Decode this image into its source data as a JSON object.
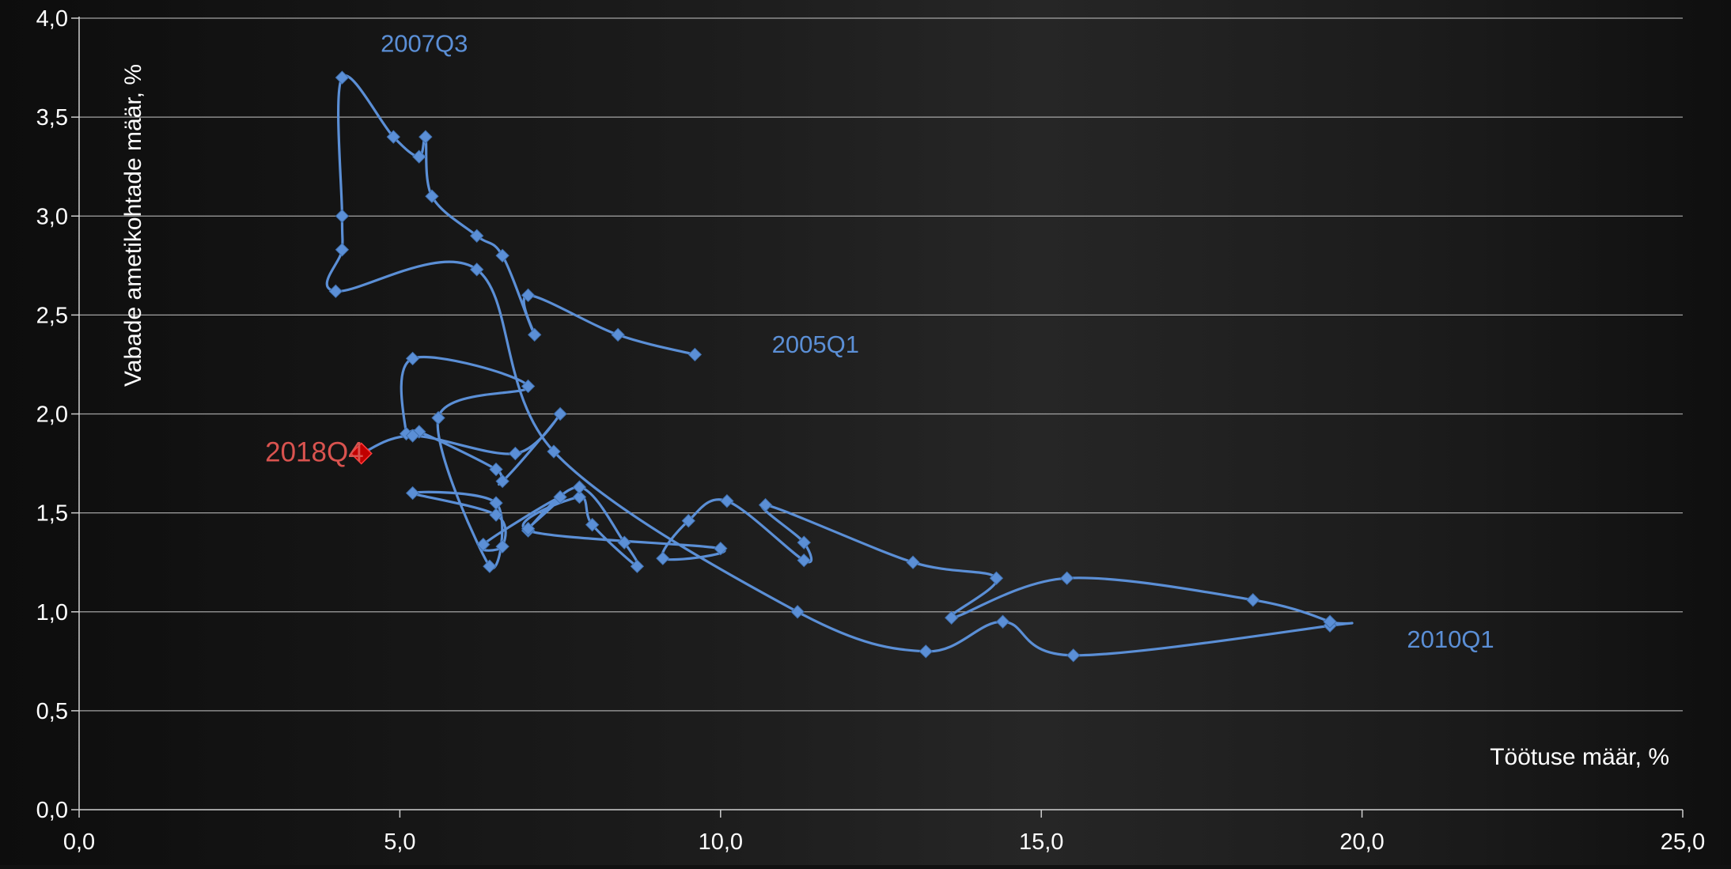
{
  "chart_data": {
    "type": "scatter",
    "xlabel": "Töötuse määr, %",
    "ylabel": "Vabade ametikohtade määr, %",
    "xlim": [
      0,
      25
    ],
    "ylim": [
      0,
      4
    ],
    "x_ticks": [
      "0,0",
      "5,0",
      "10,0",
      "15,0",
      "20,0",
      "25,0"
    ],
    "y_ticks": [
      "0,0",
      "0,5",
      "1,0",
      "1,5",
      "2,0",
      "2,5",
      "3,0",
      "3,5",
      "4,0"
    ],
    "grid": true,
    "series": [
      {
        "color": "#5b8fd6",
        "smooth": true,
        "points": [
          [
            9.6,
            2.3
          ],
          [
            8.4,
            2.4
          ],
          [
            7.0,
            2.6
          ],
          [
            7.1,
            2.4
          ],
          [
            6.6,
            2.8
          ],
          [
            6.2,
            2.9
          ],
          [
            5.5,
            3.1
          ],
          [
            5.4,
            3.4
          ],
          [
            5.3,
            3.3
          ],
          [
            4.9,
            3.4
          ],
          [
            4.1,
            3.7
          ],
          [
            4.1,
            3.0
          ],
          [
            4.1,
            2.83
          ],
          [
            4.0,
            2.62
          ],
          [
            6.2,
            2.73
          ],
          [
            7.4,
            1.81
          ],
          [
            11.2,
            1.0
          ],
          [
            13.2,
            0.8
          ],
          [
            14.4,
            0.95
          ],
          [
            15.5,
            0.78
          ],
          [
            19.5,
            0.93
          ],
          [
            19.5,
            0.95
          ],
          [
            18.3,
            1.06
          ],
          [
            15.4,
            1.17
          ],
          [
            13.6,
            0.97
          ],
          [
            14.3,
            1.17
          ],
          [
            13.0,
            1.25
          ],
          [
            10.7,
            1.54
          ],
          [
            11.3,
            1.35
          ],
          [
            11.3,
            1.26
          ],
          [
            10.1,
            1.56
          ],
          [
            9.5,
            1.46
          ],
          [
            9.1,
            1.27
          ],
          [
            10.0,
            1.32
          ],
          [
            7.0,
            1.41
          ],
          [
            7.8,
            1.58
          ],
          [
            8.0,
            1.44
          ],
          [
            8.7,
            1.23
          ],
          [
            8.5,
            1.35
          ],
          [
            7.8,
            1.63
          ],
          [
            7.0,
            1.42
          ],
          [
            7.5,
            1.58
          ],
          [
            6.3,
            1.34
          ],
          [
            6.6,
            1.33
          ],
          [
            6.5,
            1.49
          ],
          [
            5.2,
            1.6
          ],
          [
            6.5,
            1.55
          ],
          [
            6.4,
            1.23
          ],
          [
            5.6,
            1.98
          ],
          [
            7.0,
            2.14
          ],
          [
            5.2,
            2.28
          ],
          [
            5.1,
            1.9
          ],
          [
            5.3,
            1.91
          ],
          [
            6.5,
            1.72
          ],
          [
            6.6,
            1.66
          ],
          [
            7.5,
            2.0
          ],
          [
            6.8,
            1.8
          ],
          [
            5.2,
            1.89
          ],
          [
            4.4,
            1.8
          ]
        ]
      }
    ],
    "highlight_point": {
      "x": 4.4,
      "y": 1.8,
      "color": "#c00000",
      "label": "2018Q4"
    },
    "annotations": [
      {
        "text": "2007Q3",
        "x": 4.7,
        "y": 3.83,
        "color": "#5b8fd6"
      },
      {
        "text": "2005Q1",
        "x": 10.8,
        "y": 2.31,
        "color": "#5b8fd6"
      },
      {
        "text": "2010Q1",
        "x": 20.7,
        "y": 0.82,
        "color": "#5b8fd6"
      },
      {
        "text": "2018Q4",
        "x": 2.9,
        "y": 1.76,
        "color": "#d9534f"
      }
    ]
  }
}
